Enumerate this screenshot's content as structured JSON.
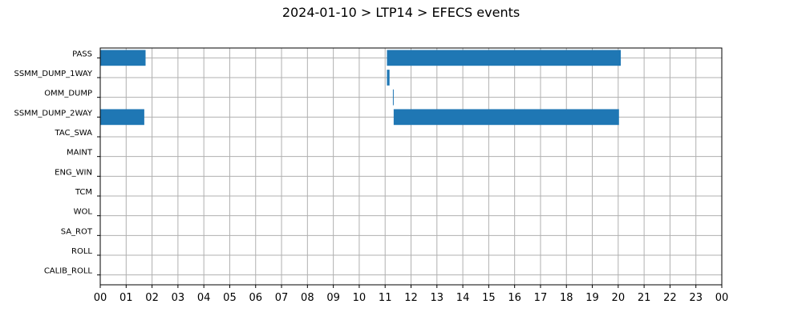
{
  "chart_data": {
    "type": "bar",
    "orientation": "horizontal-timeline",
    "title": "2024-01-10 > LTP14 > EFECS events",
    "xlabel": "",
    "ylabel": "",
    "x_unit": "hour",
    "xlim": [
      0,
      24
    ],
    "x_tick_labels": [
      "00",
      "01",
      "02",
      "03",
      "04",
      "05",
      "06",
      "07",
      "08",
      "09",
      "10",
      "11",
      "12",
      "13",
      "14",
      "15",
      "16",
      "17",
      "18",
      "19",
      "20",
      "21",
      "22",
      "23",
      "00"
    ],
    "grid": true,
    "categories": [
      "PASS",
      "SSMM_DUMP_1WAY",
      "OMM_DUMP",
      "SSMM_DUMP_2WAY",
      "TAC_SWA",
      "MAINT",
      "ENG_WIN",
      "TCM",
      "WOL",
      "SA_ROT",
      "ROLL",
      "CALIB_ROLL"
    ],
    "bar_color": "#1f77b4",
    "events": [
      {
        "category": "PASS",
        "start": 0.0,
        "end": 1.75
      },
      {
        "category": "PASS",
        "start": 11.07,
        "end": 20.1
      },
      {
        "category": "SSMM_DUMP_1WAY",
        "start": 11.07,
        "end": 11.17
      },
      {
        "category": "OMM_DUMP",
        "start": 11.3,
        "end": 11.33
      },
      {
        "category": "SSMM_DUMP_2WAY",
        "start": 0.0,
        "end": 1.7
      },
      {
        "category": "SSMM_DUMP_2WAY",
        "start": 11.33,
        "end": 20.03
      }
    ]
  }
}
